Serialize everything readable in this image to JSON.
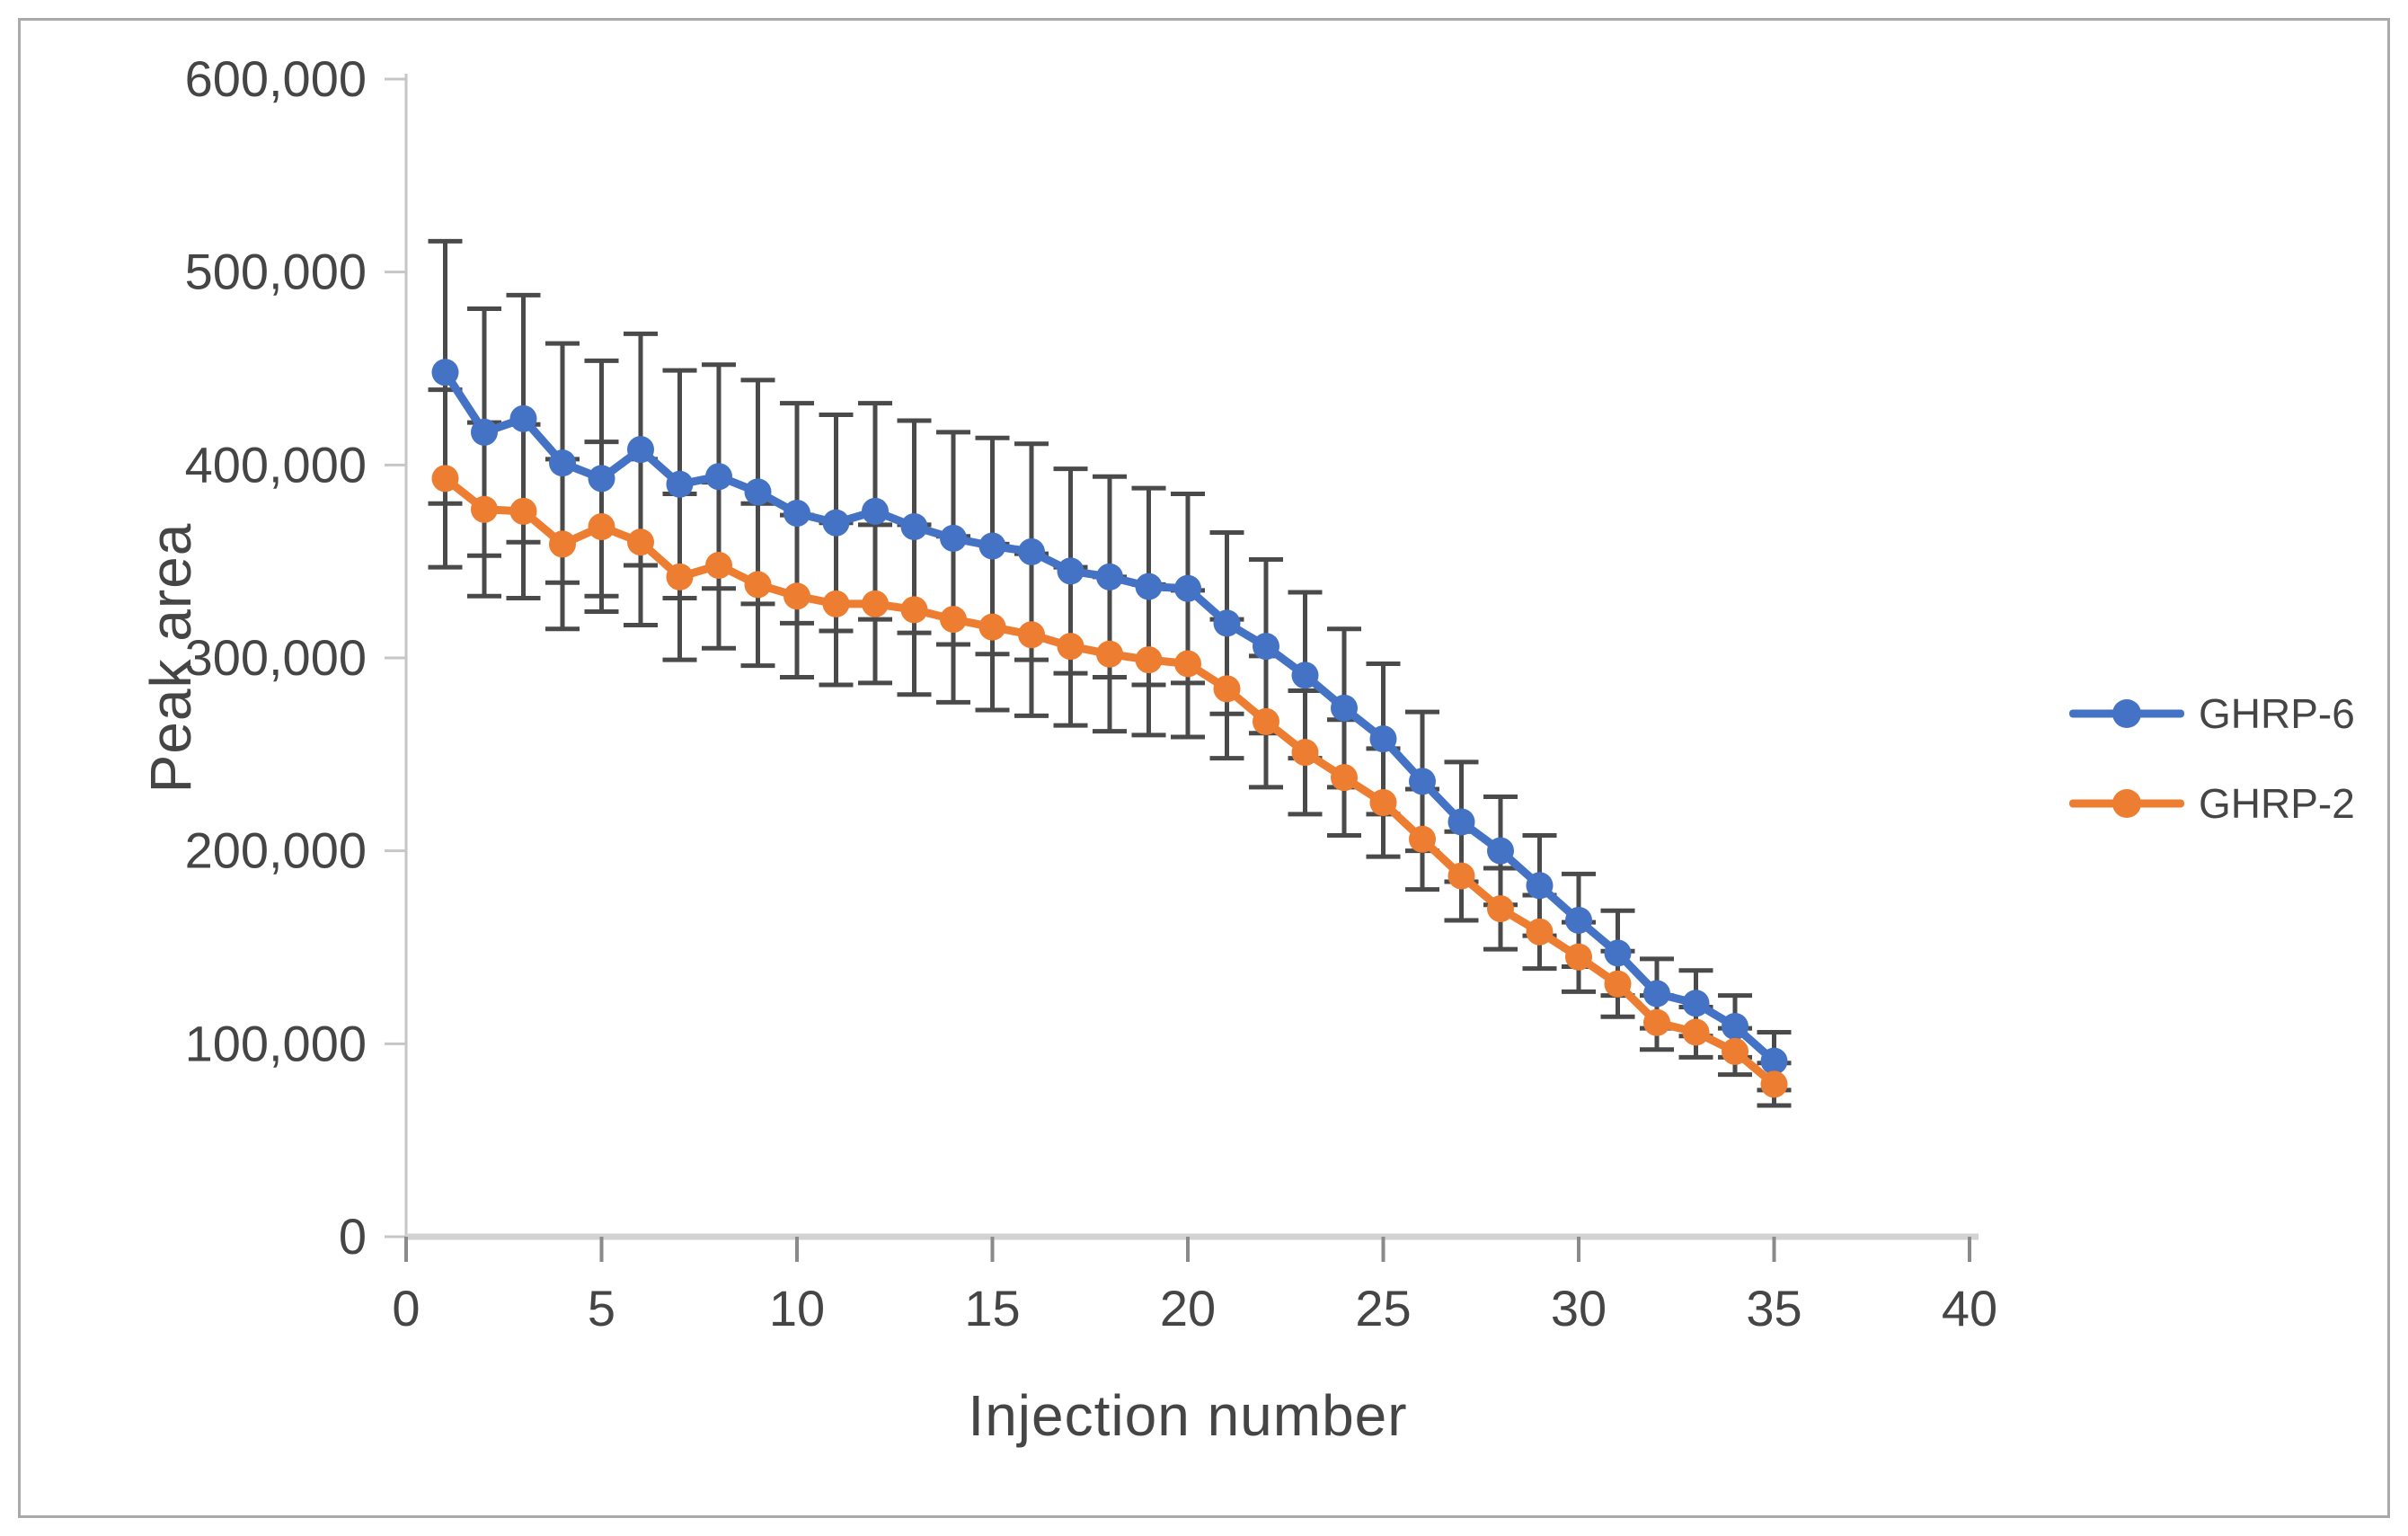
{
  "figure": {
    "background": "#ffffff",
    "border_color": "#a9a9a9"
  },
  "chart_data": {
    "type": "line",
    "title": "",
    "xlabel": "Injection number",
    "ylabel": "Peak area",
    "xlim": [
      0,
      40
    ],
    "ylim": [
      0,
      600000
    ],
    "x_ticks": [
      0,
      5,
      10,
      15,
      20,
      25,
      30,
      35,
      40
    ],
    "y_ticks": [
      0,
      100000,
      200000,
      300000,
      400000,
      500000,
      600000
    ],
    "y_tick_labels": [
      "0",
      "100,000",
      "200,000",
      "300,000",
      "400,000",
      "500,000",
      "600,000"
    ],
    "grid": false,
    "legend_position": "right",
    "error_bars": true,
    "x": [
      1,
      2,
      3,
      4,
      5,
      6,
      7,
      8,
      9,
      10,
      11,
      12,
      13,
      14,
      15,
      16,
      17,
      18,
      19,
      20,
      21,
      22,
      23,
      24,
      25,
      26,
      27,
      28,
      29,
      30,
      31,
      32,
      33,
      34,
      35
    ],
    "series": [
      {
        "name": "GHRP-6",
        "color": "#4472C4",
        "values": [
          448000,
          417000,
          424000,
          401000,
          393000,
          408000,
          390000,
          394000,
          386000,
          375000,
          370000,
          376000,
          368000,
          362000,
          358000,
          355000,
          345000,
          342000,
          337000,
          336000,
          318000,
          306000,
          291000,
          274000,
          258000,
          236000,
          215000,
          200000,
          182000,
          164000,
          147000,
          126000,
          121000,
          109000,
          91000
        ],
        "errors": [
          68000,
          64000,
          64000,
          62000,
          61000,
          60000,
          59000,
          58000,
          58000,
          57000,
          56000,
          56000,
          55000,
          55000,
          56000,
          56000,
          53000,
          52000,
          51000,
          49000,
          47000,
          45000,
          43000,
          41000,
          39000,
          36000,
          31000,
          28000,
          26000,
          24000,
          22000,
          18000,
          17000,
          16000,
          15000
        ]
      },
      {
        "name": "GHRP-2",
        "color": "#ED7D31",
        "values": [
          393000,
          377000,
          376000,
          359000,
          368000,
          360000,
          342000,
          348000,
          338000,
          332000,
          328000,
          328000,
          325000,
          320000,
          316000,
          312000,
          306000,
          302000,
          299000,
          297000,
          284000,
          267000,
          251000,
          238000,
          225000,
          206000,
          187000,
          170000,
          158000,
          145000,
          131000,
          111000,
          106000,
          96000,
          79000
        ],
        "errors": [
          46000,
          45000,
          45000,
          44000,
          44000,
          43000,
          43000,
          43000,
          42000,
          42000,
          42000,
          41000,
          44000,
          43000,
          43000,
          42000,
          41000,
          40000,
          39000,
          38000,
          36000,
          34000,
          32000,
          30000,
          28000,
          26000,
          23000,
          21000,
          19000,
          18000,
          17000,
          14000,
          13000,
          12000,
          11000
        ]
      }
    ],
    "axis_color": "#c6c6c6",
    "x_axis_color": "#d2d2d2",
    "tick_color": "#8a8a8a",
    "error_bar_color": "#4a4a4a",
    "label_color": "#454545"
  }
}
